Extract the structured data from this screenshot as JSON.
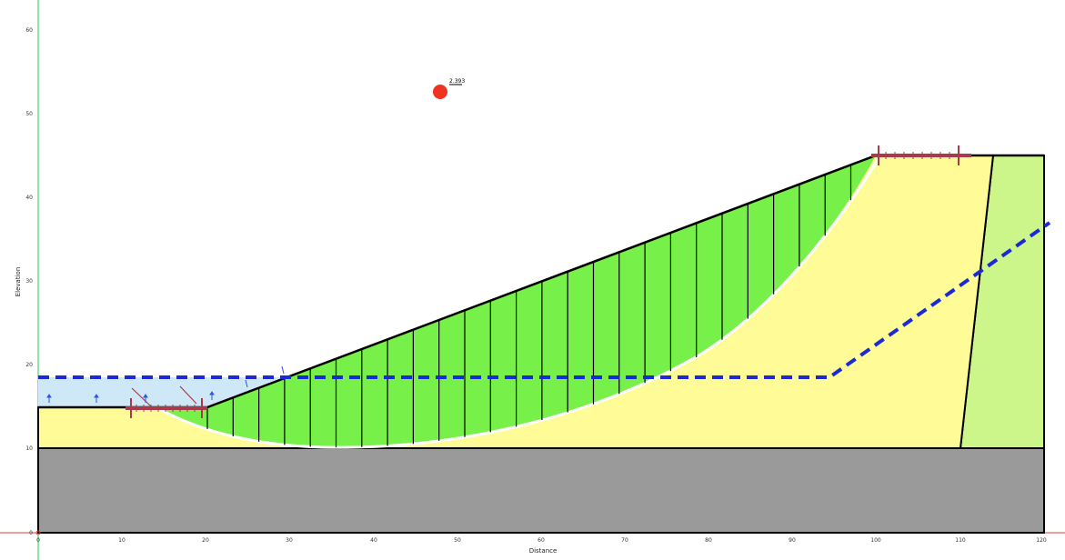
{
  "axes": {
    "x_label": "Distance",
    "y_label": "Elevation",
    "x_ticks": [
      "0",
      "10",
      "20",
      "30",
      "40",
      "50",
      "60",
      "70",
      "80",
      "90",
      "100",
      "110",
      "120"
    ],
    "y_ticks": [
      "0",
      "10",
      "20",
      "30",
      "40",
      "50",
      "60"
    ]
  },
  "critical_center": {
    "factor_of_safety": "2.393",
    "color": "#ee3322"
  },
  "colors": {
    "water_ponded": "#cfe8f7",
    "foundation_soil": "#fffb96",
    "sliding_mass": "#77f04a",
    "right_soil": "#ccf58a",
    "bedrock": "#9a9a9a",
    "water_table": "#1a2bd6",
    "anchor": "#a83a4a"
  },
  "legend_icons": {
    "anchor": "anchor-load-icon",
    "water_arrow": "water-pressure-arrow-icon",
    "origin_axis": "origin-crosshair-icon"
  }
}
